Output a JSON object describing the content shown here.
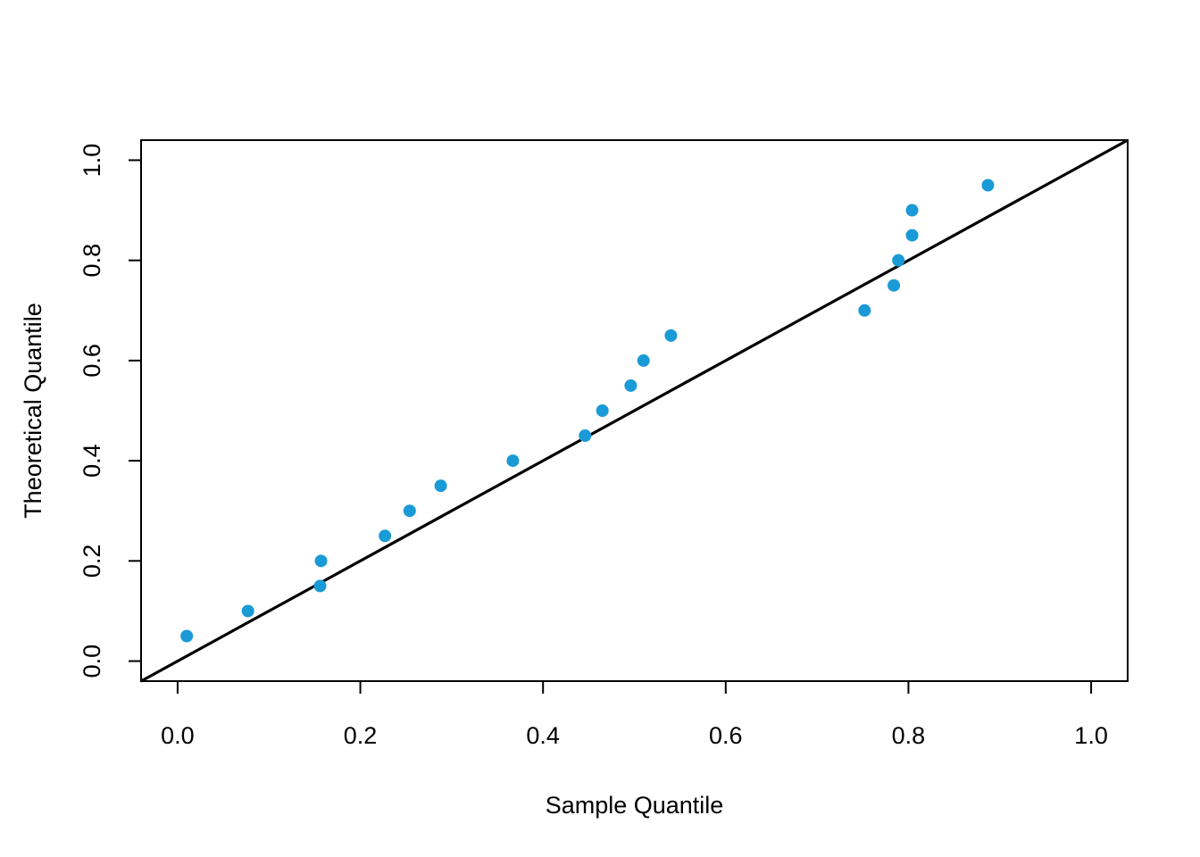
{
  "chart_data": {
    "type": "scatter",
    "xlabel": "Sample Quantile",
    "ylabel": "Theoretical Quantile",
    "xlim": [
      -0.04,
      1.04
    ],
    "ylim": [
      -0.04,
      1.04
    ],
    "x_ticks": [
      "0.0",
      "0.2",
      "0.4",
      "0.6",
      "0.8",
      "1.0"
    ],
    "y_ticks": [
      "0.0",
      "0.2",
      "0.4",
      "0.6",
      "0.8",
      "1.0"
    ],
    "grid": false,
    "reference_line": {
      "slope": 1,
      "intercept": 0,
      "color": "#000000"
    },
    "point_color": "#1a9ad6",
    "points": [
      {
        "x": 0.01,
        "y": 0.05
      },
      {
        "x": 0.077,
        "y": 0.1
      },
      {
        "x": 0.156,
        "y": 0.15
      },
      {
        "x": 0.157,
        "y": 0.2
      },
      {
        "x": 0.227,
        "y": 0.25
      },
      {
        "x": 0.254,
        "y": 0.3
      },
      {
        "x": 0.288,
        "y": 0.35
      },
      {
        "x": 0.367,
        "y": 0.4
      },
      {
        "x": 0.446,
        "y": 0.45
      },
      {
        "x": 0.465,
        "y": 0.5
      },
      {
        "x": 0.496,
        "y": 0.55
      },
      {
        "x": 0.51,
        "y": 0.6
      },
      {
        "x": 0.54,
        "y": 0.65
      },
      {
        "x": 0.752,
        "y": 0.7
      },
      {
        "x": 0.784,
        "y": 0.75
      },
      {
        "x": 0.789,
        "y": 0.8
      },
      {
        "x": 0.804,
        "y": 0.85
      },
      {
        "x": 0.804,
        "y": 0.9
      },
      {
        "x": 0.887,
        "y": 0.95
      }
    ]
  }
}
